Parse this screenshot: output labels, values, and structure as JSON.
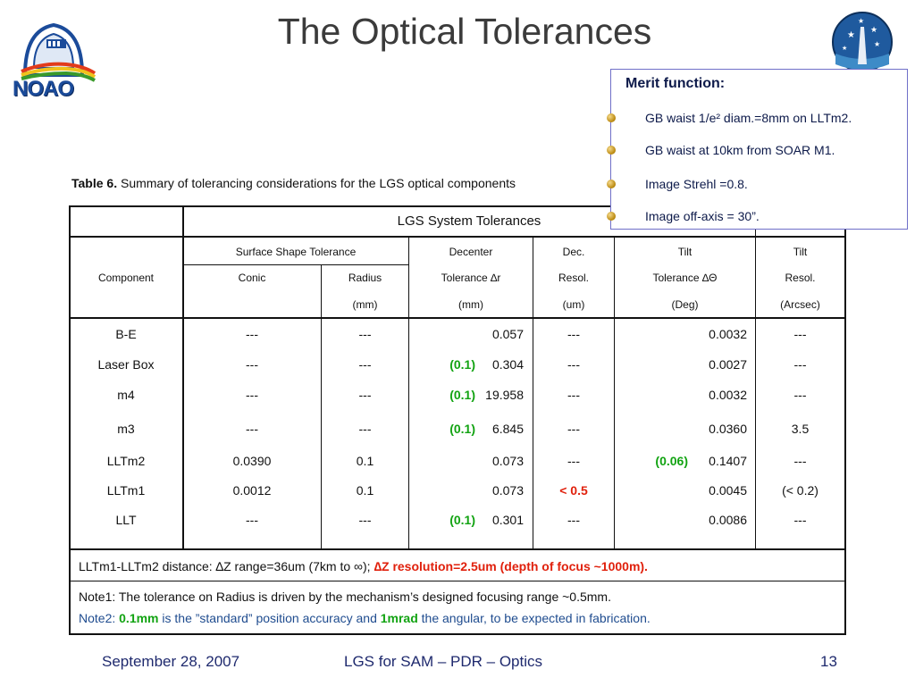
{
  "title": "The Optical Tolerances",
  "logo_text": "NOAO",
  "caption": {
    "label": "Table 6.",
    "text": " Summary of tolerancing considerations for the LGS optical components"
  },
  "table": {
    "group_header": "LGS System Tolerances",
    "col_headers": {
      "component": "Component",
      "surface": "Surface Shape Tolerance",
      "conic": "Conic",
      "radius": "Radius",
      "radius_unit": "(mm)",
      "decenter": "Decenter",
      "decenter_tol": "Tolerance ∆r",
      "decenter_unit": "(mm)",
      "dec_resol_1": "Dec.",
      "dec_resol_2": "Resol.",
      "dec_resol_unit": "(um)",
      "tilt": "Tilt",
      "tilt_tol": "Tolerance ∆Θ",
      "tilt_unit": "(Deg)",
      "tilt_resol_1": "Tilt",
      "tilt_resol_2": "Resol.",
      "tilt_resol_unit": "(Arcsec)"
    },
    "rows": [
      {
        "component": "B-E",
        "conic": "---",
        "radius": "---",
        "dec_note": "",
        "decenter": "0.057",
        "dec_resol": "---",
        "tilt_note": "",
        "tilt": "0.0032",
        "tilt_resol": "---"
      },
      {
        "component": "Laser Box",
        "conic": "---",
        "radius": "---",
        "dec_note": "(0.1)",
        "decenter": "0.304",
        "dec_resol": "---",
        "tilt_note": "",
        "tilt": "0.0027",
        "tilt_resol": "---"
      },
      {
        "component": "m4",
        "conic": "---",
        "radius": "---",
        "dec_note": "(0.1)",
        "decenter": "19.958",
        "dec_resol": "---",
        "tilt_note": "",
        "tilt": "0.0032",
        "tilt_resol": "---"
      },
      {
        "component": "m3",
        "conic": "---",
        "radius": "---",
        "dec_note": "(0.1)",
        "decenter": "6.845",
        "dec_resol": "---",
        "tilt_note": "",
        "tilt": "0.0360",
        "tilt_resol": "3.5"
      },
      {
        "component": "LLTm2",
        "conic": "0.0390",
        "radius": "0.1",
        "dec_note": "",
        "decenter": "0.073",
        "dec_resol": "---",
        "tilt_note": "(0.06)",
        "tilt": "0.1407",
        "tilt_resol": "---"
      },
      {
        "component": "LLTm1",
        "conic": "0.0012",
        "radius": "0.1",
        "dec_note": "",
        "decenter": "0.073",
        "dec_resol": "< 0.5",
        "tilt_note": "",
        "tilt": "0.0045",
        "tilt_resol": "(< 0.2)"
      },
      {
        "component": "LLT",
        "conic": "---",
        "radius": "---",
        "dec_note": "(0.1)",
        "decenter": "0.301",
        "dec_resol": "---",
        "tilt_note": "",
        "tilt": "0.0086",
        "tilt_resol": "---"
      }
    ],
    "distance_line": {
      "prefix": "LLTm1-LLTm2 distance: ∆Z range=36um (7km to ∞); ",
      "highlight": "∆Z resolution=2.5um (depth of focus ~1000m)."
    },
    "note1": "Note1: The tolerance on Radius is driven by the mechanism’s designed  focusing range ~0.5mm.",
    "note2": {
      "a": "Note2: ",
      "b": "0.1mm",
      "c": " is the ”standard” position accuracy and ",
      "d": "1mrad",
      "e": " the angular, to be expected in fabrication."
    }
  },
  "merit": {
    "title": "Merit function:",
    "items": [
      "GB waist 1/e² diam.=8mm on LLTm2.",
      "GB waist at 10km from SOAR M1.",
      "Image Strehl =0.8.",
      "Image off-axis = 30”."
    ]
  },
  "footer": {
    "date": "September 28, 2007",
    "center": "LGS for SAM – PDR – Optics",
    "page": "13"
  },
  "colors": {
    "green": "#12a312",
    "red": "#e0200c",
    "footer_blue": "#1f2a6e"
  }
}
